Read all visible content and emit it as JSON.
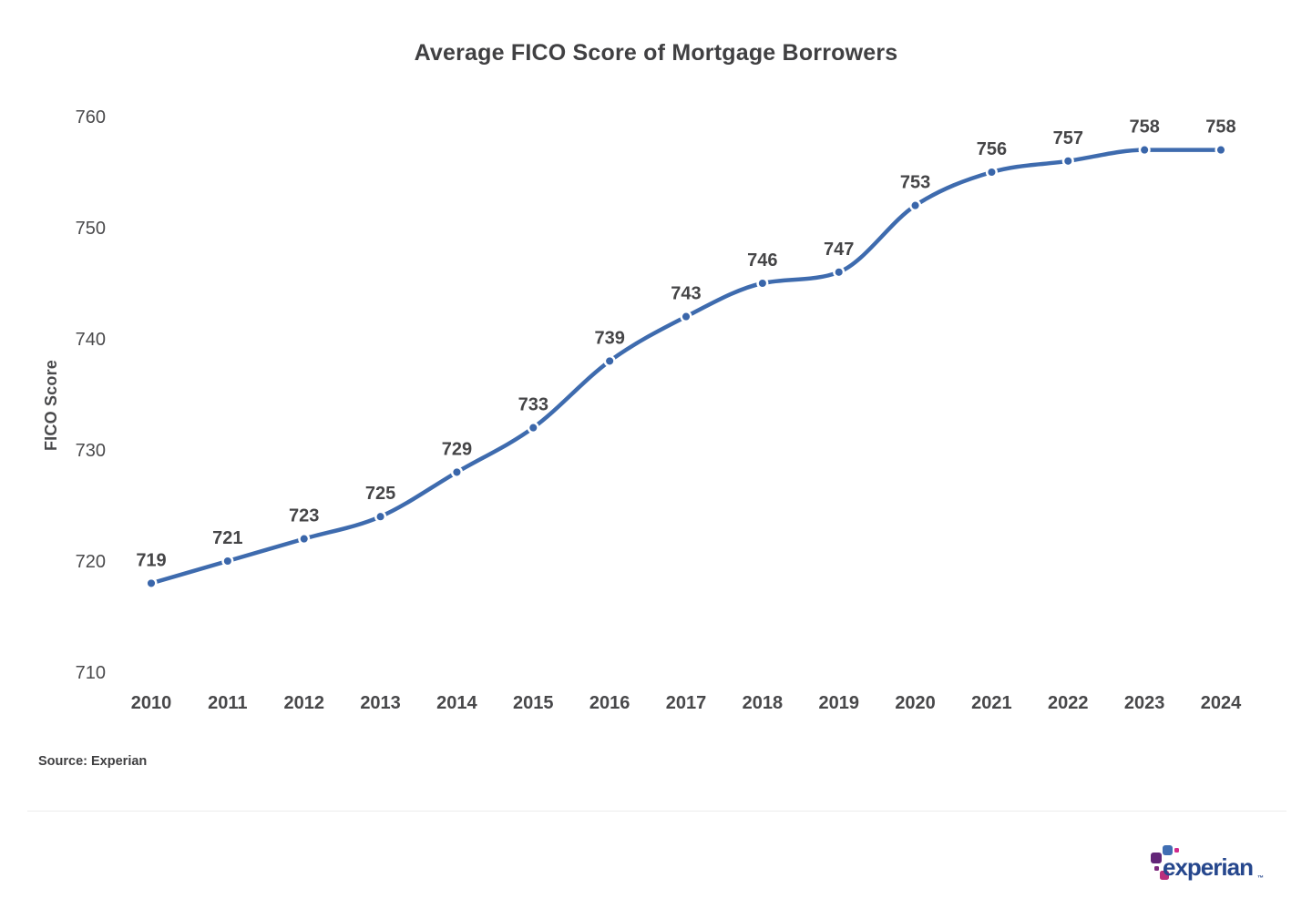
{
  "chart_data": {
    "type": "line",
    "title": "Average FICO Score of Mortgage Borrowers",
    "ylabel": "FICO Score",
    "xlabel": "",
    "categories": [
      "2010",
      "2011",
      "2012",
      "2013",
      "2014",
      "2015",
      "2016",
      "2017",
      "2018",
      "2019",
      "2020",
      "2021",
      "2022",
      "2023",
      "2024"
    ],
    "values": [
      719,
      721,
      723,
      725,
      729,
      733,
      739,
      743,
      746,
      747,
      753,
      756,
      757,
      758,
      758
    ],
    "y_ticks": [
      760,
      750,
      740,
      730,
      720,
      710
    ],
    "ylim": [
      708,
      762
    ],
    "grid": false,
    "legend": "none",
    "line_color": "#3E6BAE",
    "marker_color": "#3A66AA",
    "marker_halo": "#FFFFFF",
    "source": "Source: Experian"
  },
  "footer": {
    "logo_wordmark": "experian",
    "logo_trademark": "™",
    "logo_colors": {
      "wordmark": "#26478D",
      "blue": "#406EB3",
      "purple": "#632678",
      "purple_small": "#7D2A7F",
      "magenta": "#D12A8C",
      "pink": "#BA2F7D"
    }
  }
}
